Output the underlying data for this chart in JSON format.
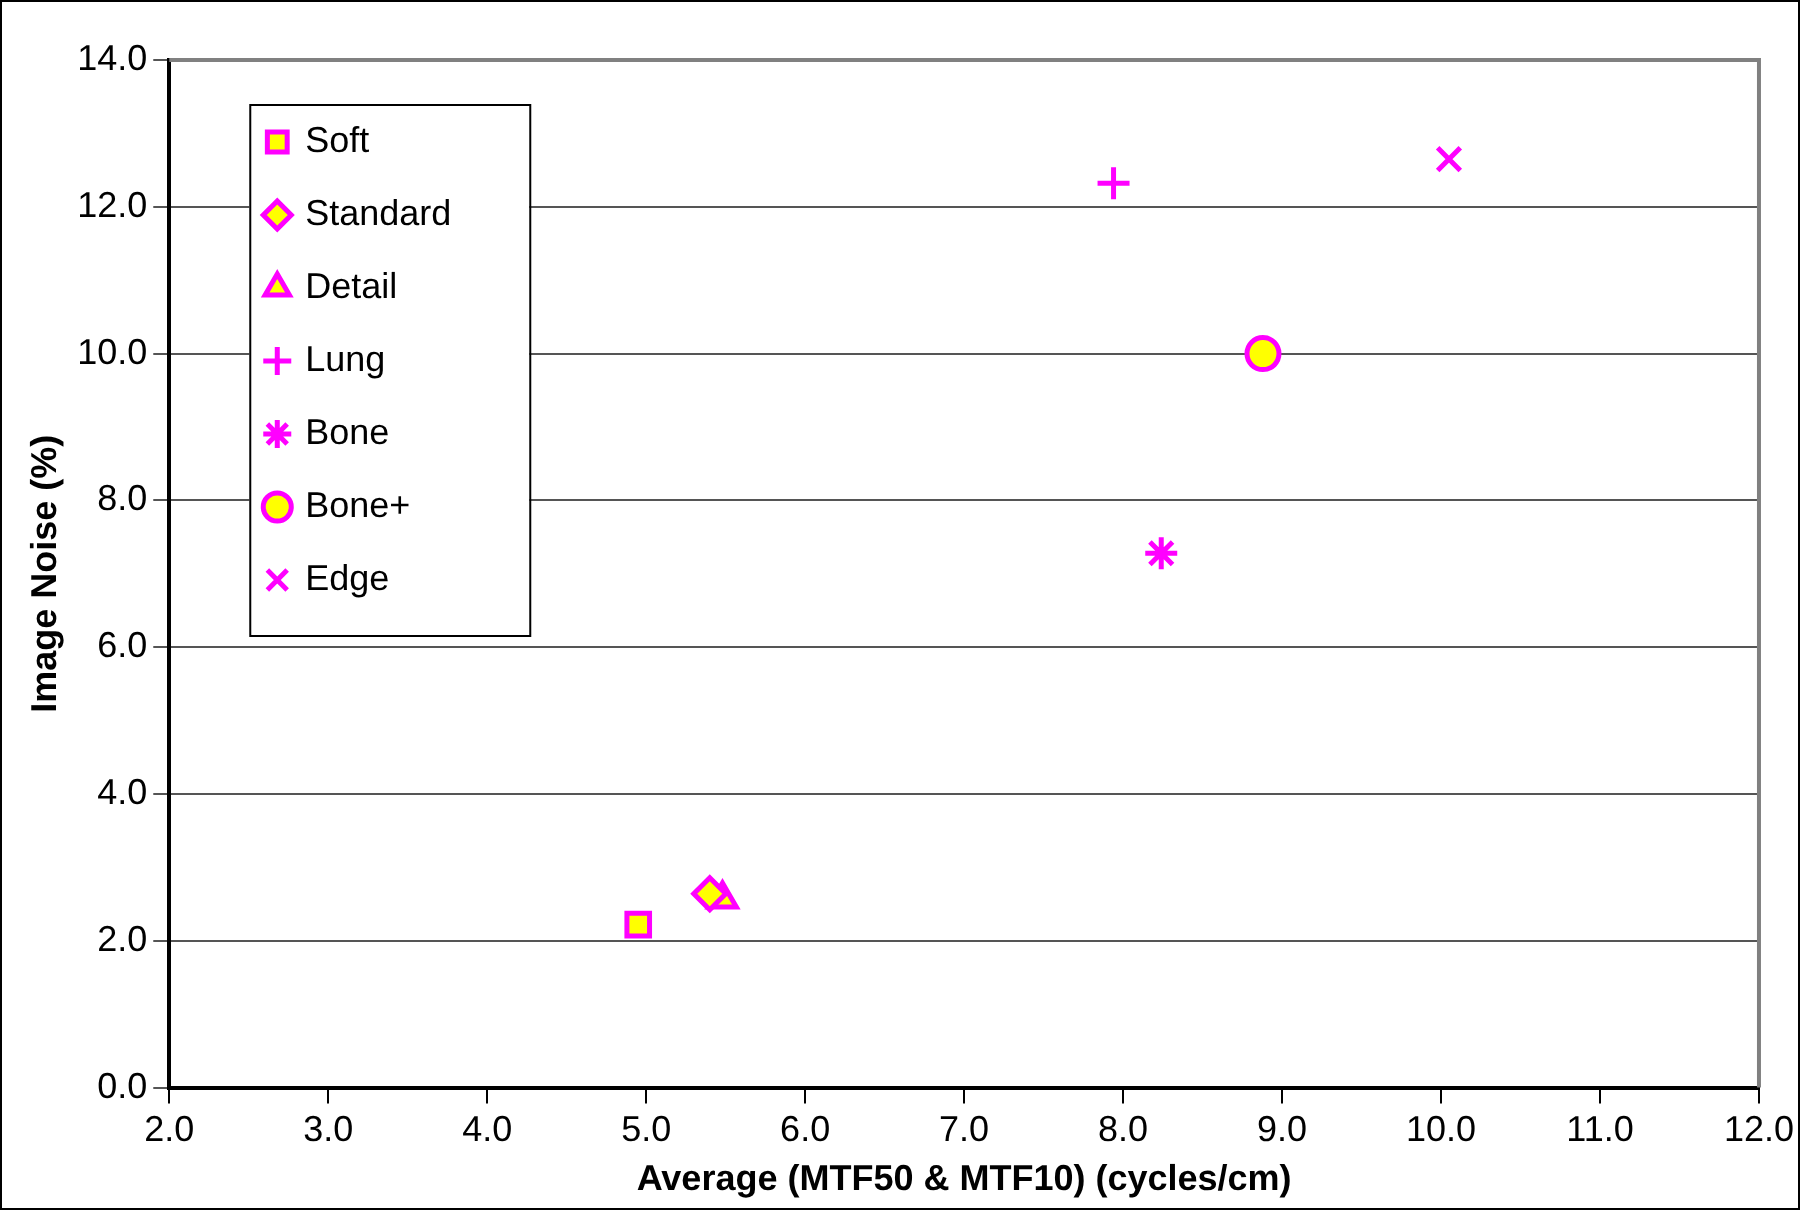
{
  "chart_data": {
    "type": "scatter",
    "xlabel": "Average (MTF50 & MTF10) (cycles/cm)",
    "ylabel": "Image Noise (%)",
    "xlim": [
      2,
      12
    ],
    "xticks": [
      {
        "value": 2,
        "label": "2.0"
      },
      {
        "value": 3,
        "label": "3.0"
      },
      {
        "value": 4,
        "label": "4.0"
      },
      {
        "value": 5,
        "label": "5.0"
      },
      {
        "value": 6,
        "label": "6.0"
      },
      {
        "value": 7,
        "label": "7.0"
      },
      {
        "value": 8,
        "label": "8.0"
      },
      {
        "value": 9,
        "label": "9.0"
      },
      {
        "value": 10,
        "label": "10.0"
      },
      {
        "value": 11,
        "label": "11.0"
      },
      {
        "value": 12,
        "label": "12.0"
      }
    ],
    "ylim": [
      0,
      14
    ],
    "yticks": [
      {
        "value": 0,
        "label": "0.0"
      },
      {
        "value": 2,
        "label": "2.0"
      },
      {
        "value": 4,
        "label": "4.0"
      },
      {
        "value": 6,
        "label": "6.0"
      },
      {
        "value": 8,
        "label": "8.0"
      },
      {
        "value": 10,
        "label": "10.0"
      },
      {
        "value": 12,
        "label": "12.0"
      },
      {
        "value": 14,
        "label": "14.0"
      }
    ],
    "grid": "y",
    "legend": "top left",
    "series": [
      {
        "name": "Soft",
        "color": "#ff00ff",
        "marker": "square",
        "x": [
          4.95
        ],
        "values": [
          2.22
        ]
      },
      {
        "name": "Standard",
        "color": "#ff00ff",
        "marker": "diamond",
        "x": [
          5.4
        ],
        "values": [
          2.64
        ]
      },
      {
        "name": "Detail",
        "color": "#ff00ff",
        "marker": "triangle",
        "x": [
          5.48
        ],
        "values": [
          2.57
        ]
      },
      {
        "name": "Lung",
        "color": "#ff00ff",
        "marker": "plus",
        "x": [
          7.94
        ],
        "values": [
          12.32
        ]
      },
      {
        "name": "Bone",
        "color": "#ff00ff",
        "marker": "cross",
        "x": [
          8.24
        ],
        "values": [
          7.28
        ]
      },
      {
        "name": "Bone+",
        "color": "#ff00ff",
        "marker": "circle",
        "x": [
          8.88
        ],
        "values": [
          10.0
        ]
      },
      {
        "name": "Edge",
        "color": "#ff00ff",
        "marker": "x",
        "x": [
          10.05
        ],
        "values": [
          12.65
        ]
      }
    ]
  }
}
